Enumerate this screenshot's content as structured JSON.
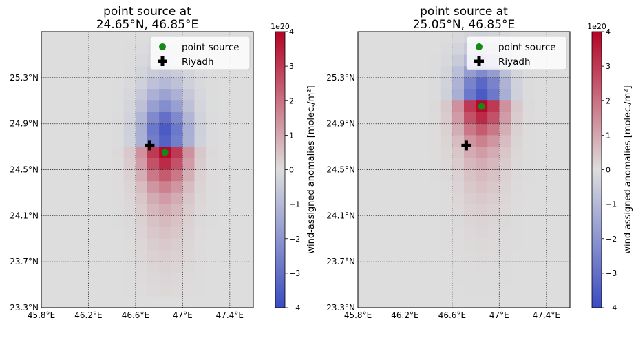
{
  "chart_data": [
    {
      "type": "heatmap",
      "title_line1": "point source at",
      "title_line2": "24.65°N, 46.85°E",
      "x_ticks": [
        "45.8°E",
        "46.2°E",
        "46.6°E",
        "47°E",
        "47.4°E"
      ],
      "x_tick_values": [
        45.8,
        46.2,
        46.6,
        47.0,
        47.4
      ],
      "y_ticks": [
        "23.3°N",
        "23.7°N",
        "24.1°N",
        "24.5°N",
        "24.9°N",
        "25.3°N"
      ],
      "y_tick_values": [
        23.3,
        23.7,
        24.1,
        24.5,
        24.9,
        25.3
      ],
      "xlim": [
        45.8,
        47.6
      ],
      "ylim": [
        23.3,
        25.7
      ],
      "grid": true,
      "grid_style": "dotted",
      "point_source": {
        "lon": 46.85,
        "lat": 24.65
      },
      "riyadh": {
        "lon": 46.72,
        "lat": 24.71
      },
      "legend": {
        "position": "top-right",
        "entries": [
          "point source",
          "Riyadh"
        ]
      },
      "colorbar": {
        "label": "wind-assigned anomalies [molec./m²]",
        "exponent": "1e20",
        "ticks": [
          "4",
          "3",
          "2",
          "1",
          "0",
          "−1",
          "−2",
          "−3",
          "−4"
        ],
        "range": [
          -4,
          4
        ],
        "colormap": "coolwarm"
      },
      "cells": {
        "lon_range": [
          46.1,
          47.5
        ],
        "lat_step": 0.1,
        "lat_range": [
          23.3,
          25.7
        ],
        "lon_step": 0.1,
        "north_lats": [
          25.5,
          25.4,
          25.3,
          25.2,
          25.1,
          25.0,
          24.9,
          24.8,
          24.7
        ],
        "north_center_values": [
          -0.15,
          -0.3,
          -0.6,
          -1.0,
          -1.6,
          -2.2,
          -3.0,
          -3.6,
          -3.4
        ],
        "south_lats": [
          24.6,
          24.5,
          24.4,
          24.3,
          24.2,
          24.1,
          24.0,
          23.9,
          23.8,
          23.7,
          23.6,
          23.5,
          23.4
        ],
        "south_center_values": [
          3.9,
          3.3,
          2.4,
          1.7,
          1.2,
          0.9,
          0.65,
          0.5,
          0.38,
          0.28,
          0.2,
          0.14,
          0.1
        ]
      }
    },
    {
      "type": "heatmap",
      "title_line1": "point source at",
      "title_line2": "25.05°N, 46.85°E",
      "x_ticks": [
        "45.8°E",
        "46.2°E",
        "46.6°E",
        "47°E",
        "47.4°E"
      ],
      "x_tick_values": [
        45.8,
        46.2,
        46.6,
        47.0,
        47.4
      ],
      "y_ticks": [
        "23.3°N",
        "23.7°N",
        "24.1°N",
        "24.5°N",
        "24.9°N",
        "25.3°N"
      ],
      "y_tick_values": [
        23.3,
        23.7,
        24.1,
        24.5,
        24.9,
        25.3
      ],
      "xlim": [
        45.8,
        47.6
      ],
      "ylim": [
        23.3,
        25.7
      ],
      "grid": true,
      "grid_style": "dotted",
      "point_source": {
        "lon": 46.85,
        "lat": 25.05
      },
      "riyadh": {
        "lon": 46.72,
        "lat": 24.71
      },
      "legend": {
        "position": "top-right",
        "entries": [
          "point source",
          "Riyadh"
        ]
      },
      "colorbar": {
        "label": "wind-assigned anomalies [molec./m²]",
        "exponent": "1e20",
        "ticks": [
          "4",
          "3",
          "2",
          "1",
          "0",
          "−1",
          "−2",
          "−3",
          "−4"
        ],
        "range": [
          -4,
          4
        ],
        "colormap": "coolwarm"
      },
      "cells": {
        "lon_range": [
          46.1,
          47.5
        ],
        "lat_step": 0.1,
        "lat_range": [
          23.3,
          25.7
        ],
        "lon_step": 0.1,
        "north_lats": [
          25.6,
          25.5,
          25.4,
          25.3,
          25.2,
          25.1
        ],
        "north_center_values": [
          -0.3,
          -0.7,
          -1.4,
          -2.3,
          -3.2,
          -3.6
        ],
        "south_lats": [
          25.0,
          24.9,
          24.8,
          24.7,
          24.6,
          24.5,
          24.4,
          24.3,
          24.2,
          24.1,
          24.0,
          23.9,
          23.8,
          23.7,
          23.6,
          23.5,
          23.4
        ],
        "south_center_values": [
          3.9,
          3.3,
          2.4,
          1.7,
          1.2,
          0.9,
          0.65,
          0.5,
          0.38,
          0.28,
          0.2,
          0.14,
          0.1,
          0.07,
          0.05,
          0.03,
          0.02
        ]
      }
    }
  ]
}
